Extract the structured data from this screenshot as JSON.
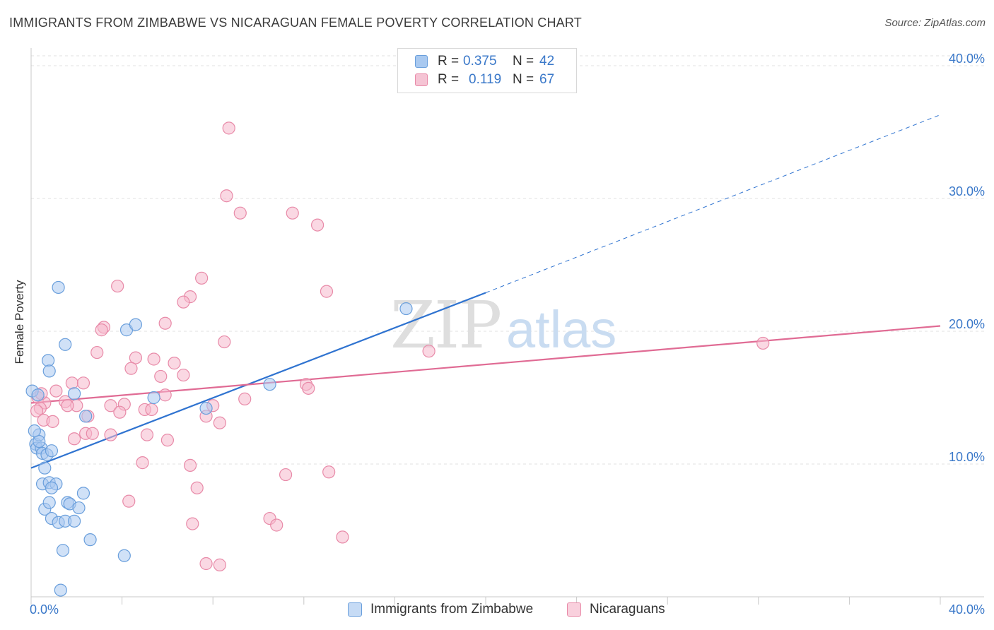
{
  "title": "IMMIGRANTS FROM ZIMBABWE VS NICARAGUAN FEMALE POVERTY CORRELATION CHART",
  "source": "Source: ZipAtlas.com",
  "watermark": {
    "zip": "ZIP",
    "atlas": "atlas"
  },
  "legend_top": {
    "rows": [
      {
        "r_label": "R =",
        "r_value": "0.375",
        "n_label": "N =",
        "n_value": "42"
      },
      {
        "r_label": "R =",
        "r_value": "0.119",
        "n_label": "N =",
        "n_value": "67"
      }
    ]
  },
  "legend_bottom": {
    "items": [
      {
        "label": "Immigrants from Zimbabwe"
      },
      {
        "label": "Nicaraguans"
      }
    ]
  },
  "colors": {
    "blue_fill": "#a9c9f0",
    "blue_stroke": "#6a9fdc",
    "blue_line": "#2f73d0",
    "pink_fill": "#f5b8cc",
    "pink_stroke": "#e88aa8",
    "pink_line": "#e06b94",
    "tick_text": "#3a78c9",
    "grid": "#e2e2e2"
  },
  "chart_data": {
    "type": "scatter",
    "title": "IMMIGRANTS FROM ZIMBABWE VS NICARAGUAN FEMALE POVERTY CORRELATION CHART",
    "xlabel": "",
    "ylabel": "Female Poverty",
    "xlim": [
      0,
      40
    ],
    "ylim": [
      0,
      40
    ],
    "x_tick_labels": [
      "0.0%",
      "40.0%"
    ],
    "y_ticks": [
      10,
      20,
      30,
      40
    ],
    "y_tick_labels": [
      "10.0%",
      "20.0%",
      "30.0%",
      "40.0%"
    ],
    "grid": "horizontal dashed",
    "legend_position": "top-center",
    "series": [
      {
        "name": "Immigrants from Zimbabwe",
        "r": 0.375,
        "n": 42,
        "trend": {
          "x0": 0,
          "y0": 9.7,
          "x1": 20,
          "y1": 22.9,
          "dash_to_x": 40,
          "dash_to_y": 36.3
        },
        "points": [
          [
            0.05,
            15.5
          ],
          [
            0.3,
            15.2
          ],
          [
            0.2,
            11.5
          ],
          [
            0.25,
            11.2
          ],
          [
            0.35,
            12.2
          ],
          [
            0.45,
            11.2
          ],
          [
            0.5,
            10.8
          ],
          [
            0.7,
            10.7
          ],
          [
            0.6,
            9.7
          ],
          [
            0.9,
            11.0
          ],
          [
            1.2,
            23.3
          ],
          [
            1.5,
            19.0
          ],
          [
            0.75,
            17.8
          ],
          [
            0.8,
            17.0
          ],
          [
            1.9,
            15.3
          ],
          [
            2.4,
            13.6
          ],
          [
            4.2,
            20.1
          ],
          [
            4.6,
            20.5
          ],
          [
            5.4,
            15.0
          ],
          [
            7.7,
            14.2
          ],
          [
            10.5,
            16.0
          ],
          [
            16.5,
            21.7
          ],
          [
            0.5,
            8.5
          ],
          [
            0.8,
            8.6
          ],
          [
            1.1,
            8.5
          ],
          [
            0.9,
            8.2
          ],
          [
            2.3,
            7.8
          ],
          [
            0.6,
            6.6
          ],
          [
            0.8,
            7.1
          ],
          [
            1.6,
            7.1
          ],
          [
            1.7,
            7.0
          ],
          [
            2.1,
            6.7
          ],
          [
            0.9,
            5.9
          ],
          [
            1.2,
            5.6
          ],
          [
            1.5,
            5.7
          ],
          [
            1.9,
            5.7
          ],
          [
            2.6,
            4.3
          ],
          [
            1.4,
            3.5
          ],
          [
            4.1,
            3.1
          ],
          [
            1.3,
            0.5
          ],
          [
            0.35,
            11.7
          ],
          [
            0.15,
            12.5
          ]
        ]
      },
      {
        "name": "Nicaraguans",
        "r": 0.119,
        "n": 67,
        "trend": {
          "x0": 0,
          "y0": 14.6,
          "x1": 40,
          "y1": 20.4
        },
        "points": [
          [
            8.7,
            35.3
          ],
          [
            8.6,
            30.2
          ],
          [
            9.2,
            28.9
          ],
          [
            11.5,
            28.9
          ],
          [
            12.6,
            28.0
          ],
          [
            7.5,
            24.0
          ],
          [
            3.8,
            23.4
          ],
          [
            13.0,
            23.0
          ],
          [
            7.0,
            22.6
          ],
          [
            6.7,
            22.2
          ],
          [
            5.9,
            20.6
          ],
          [
            3.2,
            20.3
          ],
          [
            3.1,
            20.1
          ],
          [
            8.5,
            19.2
          ],
          [
            2.9,
            18.4
          ],
          [
            4.6,
            18.0
          ],
          [
            5.4,
            17.9
          ],
          [
            6.3,
            17.6
          ],
          [
            4.4,
            17.2
          ],
          [
            6.7,
            16.7
          ],
          [
            5.7,
            16.6
          ],
          [
            1.8,
            16.1
          ],
          [
            2.3,
            16.1
          ],
          [
            12.1,
            16.0
          ],
          [
            12.2,
            15.7
          ],
          [
            1.1,
            15.5
          ],
          [
            5.9,
            15.2
          ],
          [
            9.4,
            14.9
          ],
          [
            0.3,
            15.0
          ],
          [
            0.6,
            14.6
          ],
          [
            1.5,
            14.7
          ],
          [
            2.0,
            14.4
          ],
          [
            1.6,
            14.4
          ],
          [
            3.5,
            14.4
          ],
          [
            4.1,
            14.5
          ],
          [
            0.4,
            14.2
          ],
          [
            0.25,
            14.0
          ],
          [
            3.9,
            13.9
          ],
          [
            5.0,
            14.1
          ],
          [
            5.3,
            14.1
          ],
          [
            8.0,
            14.4
          ],
          [
            2.5,
            13.6
          ],
          [
            7.7,
            13.6
          ],
          [
            0.55,
            13.3
          ],
          [
            0.95,
            13.2
          ],
          [
            8.3,
            13.1
          ],
          [
            2.4,
            12.3
          ],
          [
            2.7,
            12.3
          ],
          [
            3.5,
            12.2
          ],
          [
            5.1,
            12.2
          ],
          [
            1.9,
            11.9
          ],
          [
            6.0,
            11.8
          ],
          [
            4.9,
            10.1
          ],
          [
            7.0,
            9.9
          ],
          [
            11.2,
            9.2
          ],
          [
            13.1,
            9.4
          ],
          [
            17.5,
            18.5
          ],
          [
            32.2,
            19.1
          ],
          [
            7.3,
            8.2
          ],
          [
            4.3,
            7.2
          ],
          [
            10.5,
            5.9
          ],
          [
            10.8,
            5.4
          ],
          [
            7.1,
            5.5
          ],
          [
            13.7,
            4.5
          ],
          [
            7.7,
            2.5
          ],
          [
            8.3,
            2.4
          ],
          [
            0.45,
            15.3
          ]
        ]
      }
    ]
  }
}
